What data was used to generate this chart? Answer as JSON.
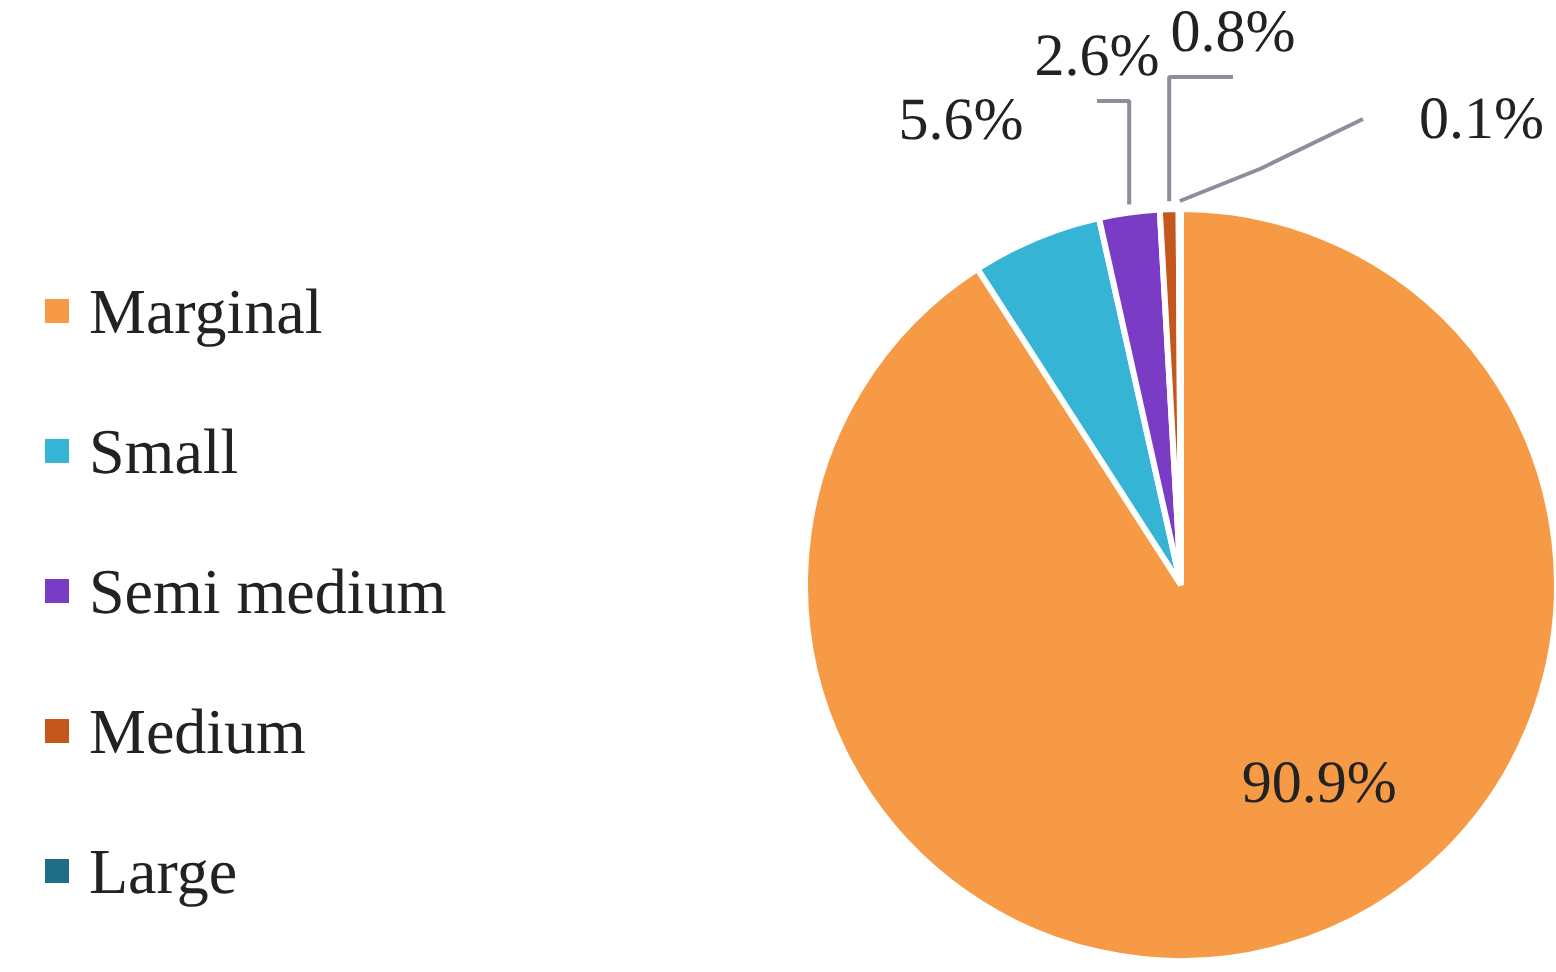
{
  "chart_data": {
    "type": "pie",
    "categories": [
      "Marginal",
      "Small",
      "Semi medium",
      "Medium",
      "Large"
    ],
    "values": [
      90.9,
      5.6,
      2.6,
      0.8,
      0.1
    ],
    "value_labels": [
      "90.9%",
      "5.6%",
      "2.6%",
      "0.8%",
      "0.1%"
    ],
    "colors": [
      "#f79a45",
      "#35b4d6",
      "#7a3cc4",
      "#c4581c",
      "#1f6e85"
    ],
    "legend": "left"
  }
}
